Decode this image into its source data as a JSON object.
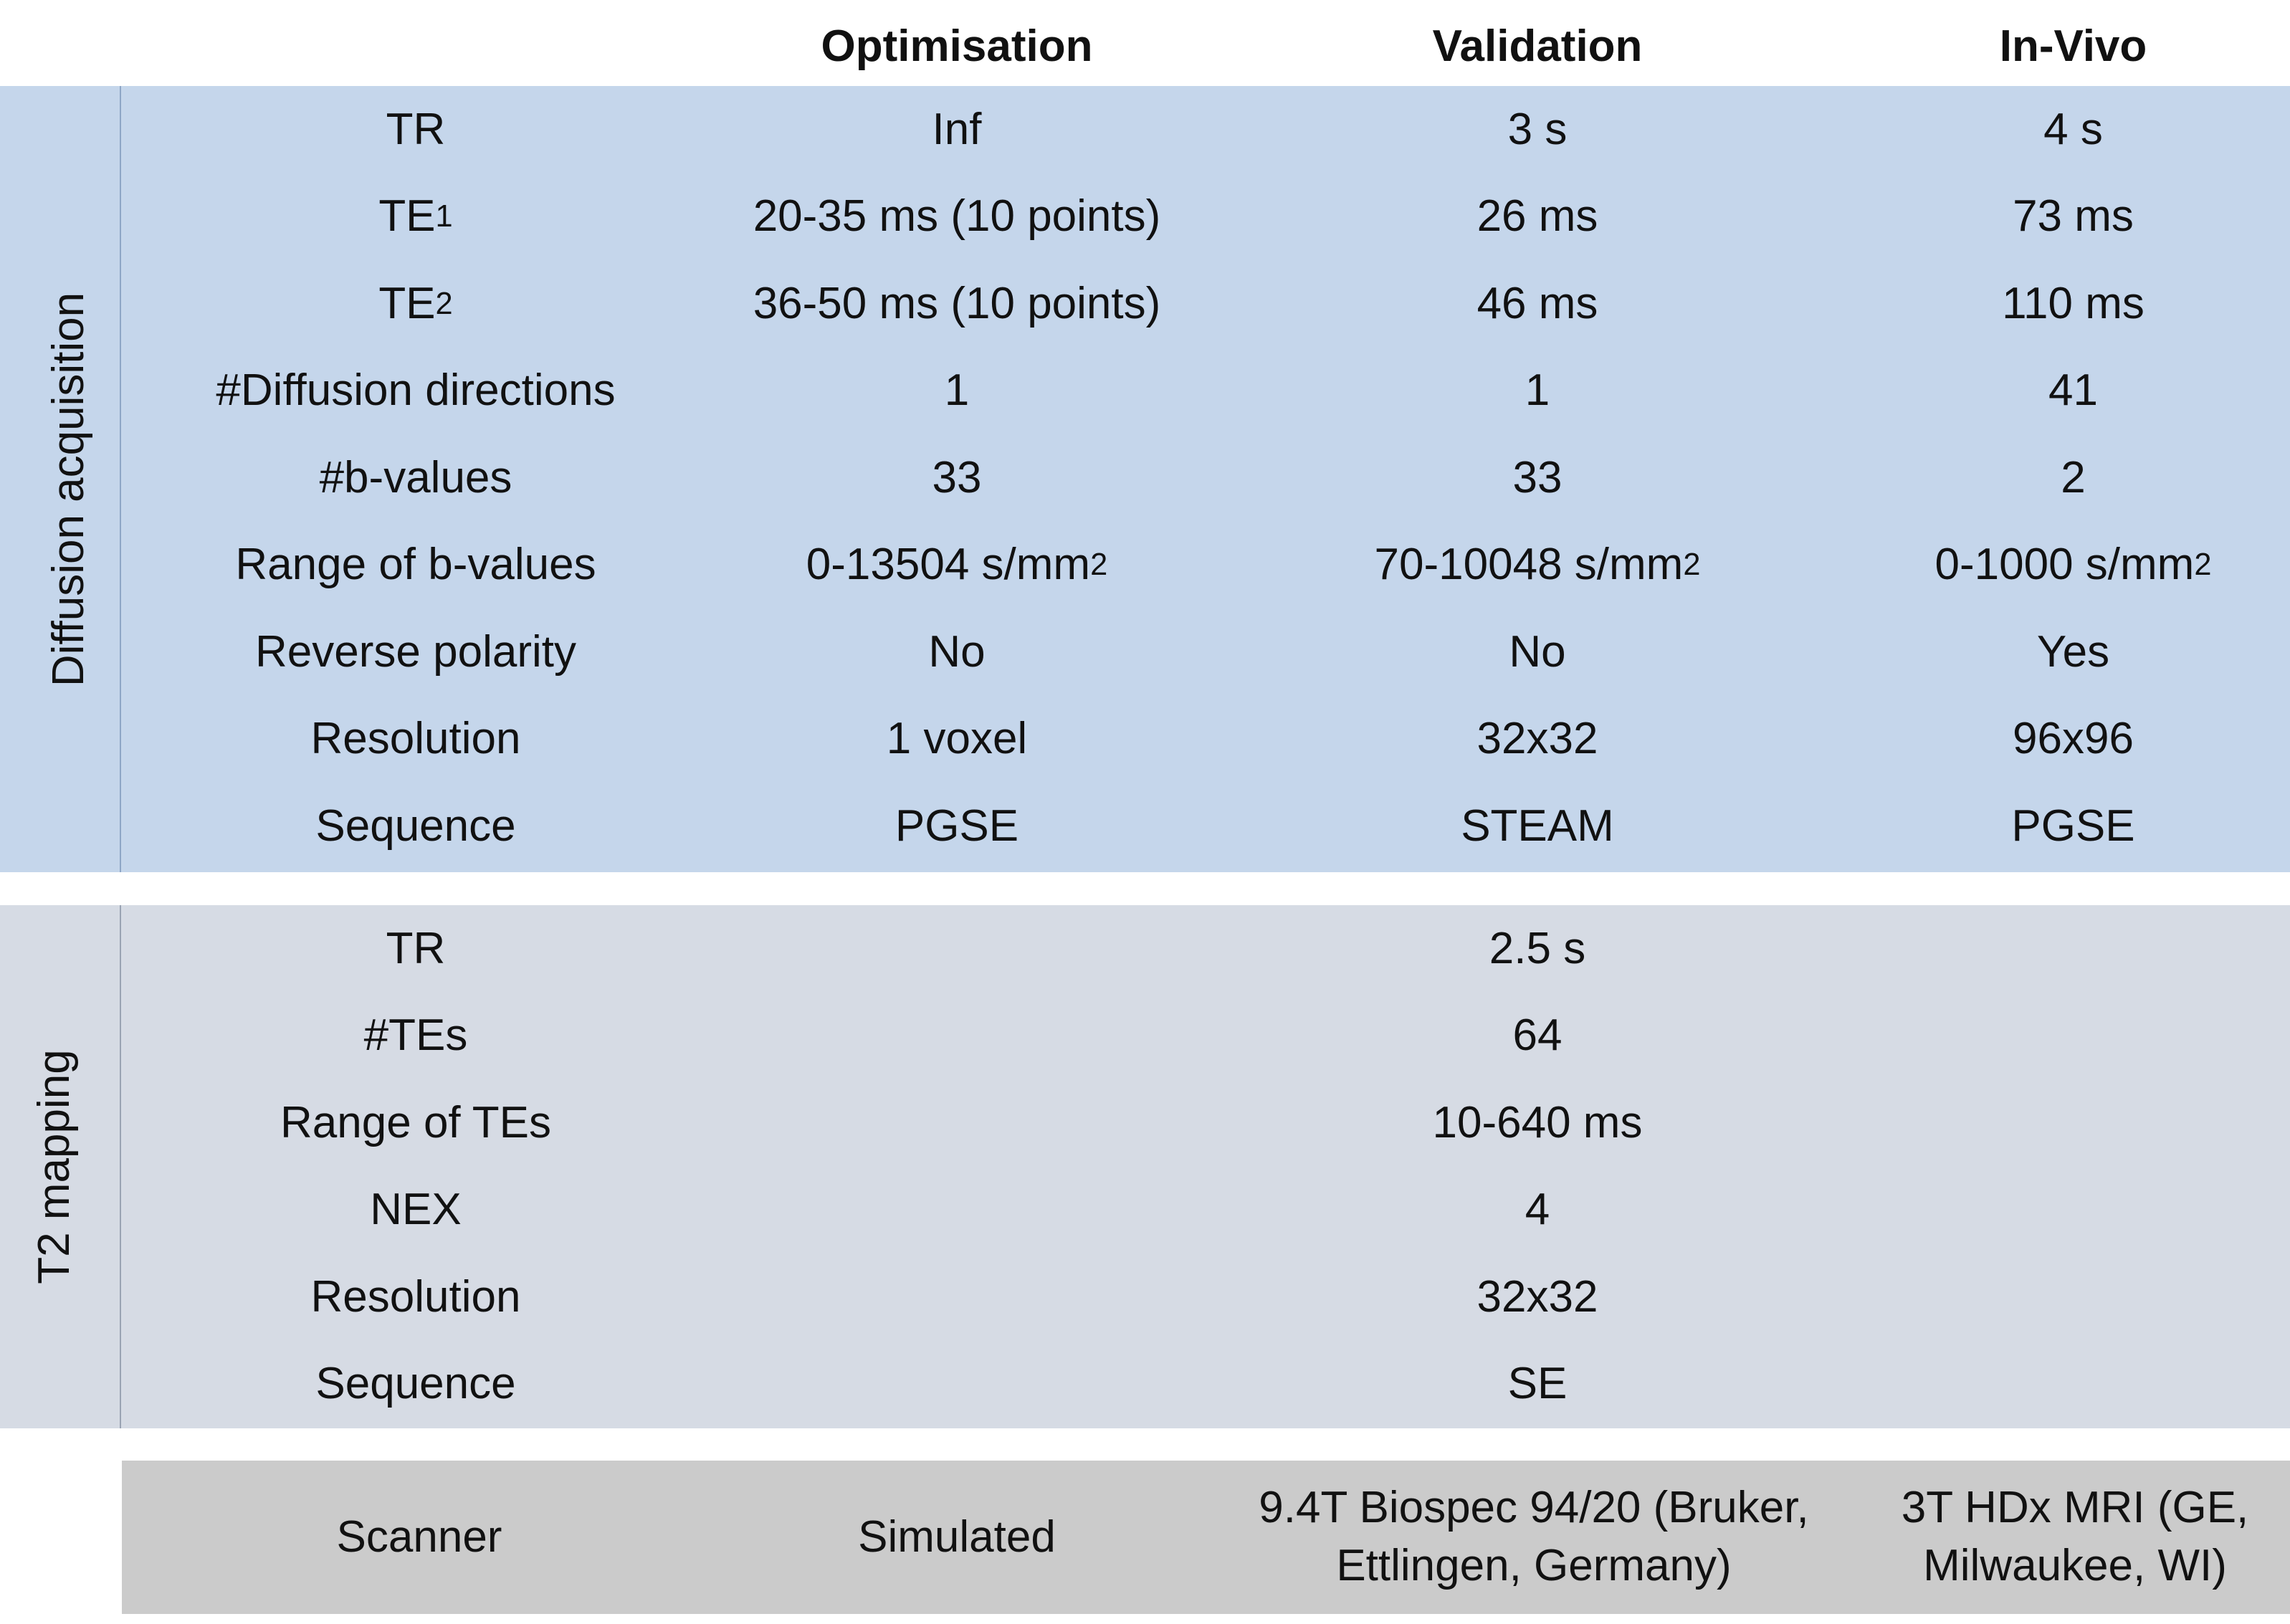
{
  "headers": {
    "col1": "Optimisation",
    "col2": "Validation",
    "col3": "In-Vivo"
  },
  "diffusion": {
    "section_label": "Diffusion acquisition",
    "rows": [
      {
        "label": "TR",
        "label_sub": "",
        "v1": "Inf",
        "v2": "3 s",
        "v3": "4 s",
        "sup": ""
      },
      {
        "label": "TE",
        "label_sub": "1",
        "v1": "20-35 ms (10 points)",
        "v2": "26 ms",
        "v3": "73 ms",
        "sup": ""
      },
      {
        "label": "TE",
        "label_sub": "2",
        "v1": "36-50 ms (10 points)",
        "v2": "46 ms",
        "v3": "110 ms",
        "sup": ""
      },
      {
        "label": "#Diffusion directions",
        "label_sub": "",
        "v1": "1",
        "v2": "1",
        "v3": "41",
        "sup": ""
      },
      {
        "label": "#b-values",
        "label_sub": "",
        "v1": "33",
        "v2": "33",
        "v3": "2",
        "sup": ""
      },
      {
        "label": "Range of b-values",
        "label_sub": "",
        "v1": "0-13504 s/mm",
        "v2": "70-10048 s/mm",
        "v3": "0-1000 s/mm",
        "sup": "2"
      },
      {
        "label": "Reverse polarity",
        "label_sub": "",
        "v1": "No",
        "v2": "No",
        "v3": "Yes",
        "sup": ""
      },
      {
        "label": "Resolution",
        "label_sub": "",
        "v1": "1 voxel",
        "v2": "32x32",
        "v3": "96x96",
        "sup": ""
      },
      {
        "label": "Sequence",
        "label_sub": "",
        "v1": "PGSE",
        "v2": "STEAM",
        "v3": "PGSE",
        "sup": ""
      }
    ]
  },
  "t2": {
    "section_label": "T2 mapping",
    "rows": [
      {
        "label": "TR",
        "v2": "2.5 s"
      },
      {
        "label": "#TEs",
        "v2": "64"
      },
      {
        "label": "Range of TEs",
        "v2": "10-640 ms"
      },
      {
        "label": "NEX",
        "v2": "4"
      },
      {
        "label": "Resolution",
        "v2": "32x32"
      },
      {
        "label": "Sequence",
        "v2": "SE"
      }
    ]
  },
  "scanner": {
    "label": "Scanner",
    "v1": "Simulated",
    "v2": "9.4T Biospec 94/20 (Bruker, Ettlingen, Germany)",
    "v3": "3T HDx MRI (GE, Milwaukee, WI)"
  },
  "colors": {
    "diffusion_band": "#c5d6eb",
    "t2_band": "#d6dbe4",
    "scanner_band": "#cbcbcb"
  }
}
